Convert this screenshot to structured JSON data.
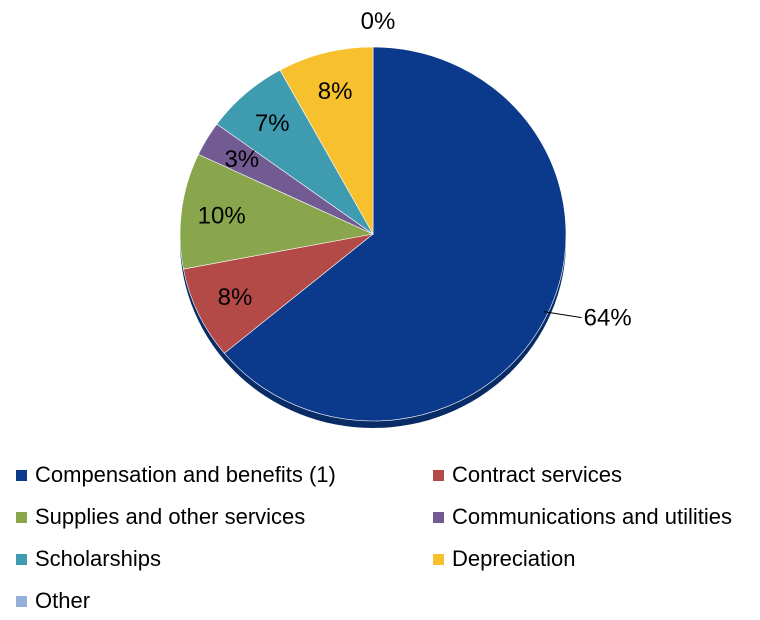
{
  "chart_data": {
    "type": "pie",
    "title": "",
    "legend_position": "bottom",
    "slices": [
      {
        "label": "Compensation and benefits (1)",
        "value": 64,
        "value_label": "64%",
        "color": "#0b3a8c"
      },
      {
        "label": "Contract services",
        "value": 8,
        "value_label": "8%",
        "color": "#b34a47"
      },
      {
        "label": "Supplies and other services",
        "value": 10,
        "value_label": "10%",
        "color": "#8aa64d"
      },
      {
        "label": "Communications and utilities",
        "value": 3,
        "value_label": "3%",
        "color": "#725a92"
      },
      {
        "label": "Scholarships",
        "value": 7,
        "value_label": "7%",
        "color": "#3f9bb0"
      },
      {
        "label": "Depreciation",
        "value": 8,
        "value_label": "8%",
        "color": "#f7c12d"
      },
      {
        "label": "Other",
        "value": 0,
        "value_label": "0%",
        "color": "#95b0d8"
      }
    ]
  }
}
